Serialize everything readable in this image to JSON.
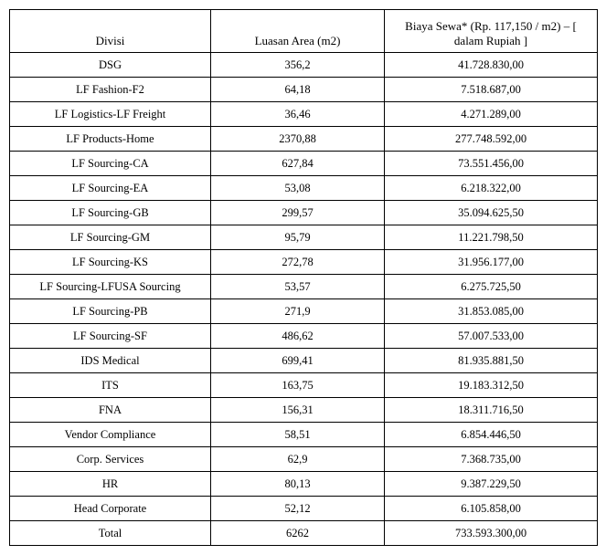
{
  "table": {
    "columns": [
      "Divisi",
      "Luasan Area (m2)",
      "Biaya Sewa* (Rp. 117,150 / m2) – [ dalam Rupiah ]"
    ],
    "rows": [
      [
        "DSG",
        "356,2",
        "41.728.830,00"
      ],
      [
        "LF Fashion-F2",
        "64,18",
        "7.518.687,00"
      ],
      [
        "LF Logistics-LF Freight",
        "36,46",
        "4.271.289,00"
      ],
      [
        "LF Products-Home",
        "2370,88",
        "277.748.592,00"
      ],
      [
        "LF Sourcing-CA",
        "627,84",
        "73.551.456,00"
      ],
      [
        "LF Sourcing-EA",
        "53,08",
        "6.218.322,00"
      ],
      [
        "LF Sourcing-GB",
        "299,57",
        "35.094.625,50"
      ],
      [
        "LF Sourcing-GM",
        "95,79",
        "11.221.798,50"
      ],
      [
        "LF Sourcing-KS",
        "272,78",
        "31.956.177,00"
      ],
      [
        "LF Sourcing-LFUSA Sourcing",
        "53,57",
        "6.275.725,50"
      ],
      [
        "LF Sourcing-PB",
        "271,9",
        "31.853.085,00"
      ],
      [
        "LF Sourcing-SF",
        "486,62",
        "57.007.533,00"
      ],
      [
        "IDS Medical",
        "699,41",
        "81.935.881,50"
      ],
      [
        "ITS",
        "163,75",
        "19.183.312,50"
      ],
      [
        "FNA",
        "156,31",
        "18.311.716,50"
      ],
      [
        "Vendor Compliance",
        "58,51",
        "6.854.446,50"
      ],
      [
        "Corp. Services",
        "62,9",
        "7.368.735,00"
      ],
      [
        "HR",
        "80,13",
        "9.387.229,50"
      ],
      [
        "Head Corporate",
        "52,12",
        "6.105.858,00"
      ],
      [
        "Total",
        "6262",
        "733.593.300,00"
      ]
    ],
    "border_color": "#000000",
    "background_color": "#ffffff",
    "font_family": "Times New Roman",
    "header_fontsize": 13,
    "body_fontsize": 12.5
  }
}
